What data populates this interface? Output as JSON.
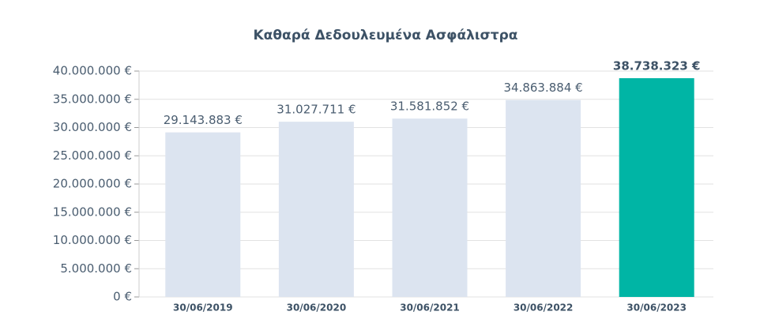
{
  "chart_data": {
    "type": "bar",
    "title": "Καθαρά Δεδουλευμένα Ασφάλιστρα",
    "categories": [
      "30/06/2019",
      "30/06/2020",
      "30/06/2021",
      "30/06/2022",
      "30/06/2023"
    ],
    "values": [
      29143883,
      31027711,
      31581852,
      34863884,
      38738323
    ],
    "value_labels": [
      "29.143.883 €",
      "31.027.711 €",
      "31.581.852 €",
      "34.863.884 €",
      "38.738.323 €"
    ],
    "colors": [
      "#dce4f0",
      "#dce4f0",
      "#dce4f0",
      "#dce4f0",
      "#00b5a5"
    ],
    "ylim": [
      0,
      40000000
    ],
    "yticks": [
      {
        "value": 0,
        "label": "0 €"
      },
      {
        "value": 5000000,
        "label": "5.000.000 €"
      },
      {
        "value": 10000000,
        "label": "10.000.000 €"
      },
      {
        "value": 15000000,
        "label": "15.000.000 €"
      },
      {
        "value": 20000000,
        "label": "20.000.000 €"
      },
      {
        "value": 25000000,
        "label": "25.000.000 €"
      },
      {
        "value": 30000000,
        "label": "30.000.000 €"
      },
      {
        "value": 35000000,
        "label": "35.000.000 €"
      },
      {
        "value": 40000000,
        "label": "40.000.000 €"
      }
    ],
    "grid": true
  }
}
